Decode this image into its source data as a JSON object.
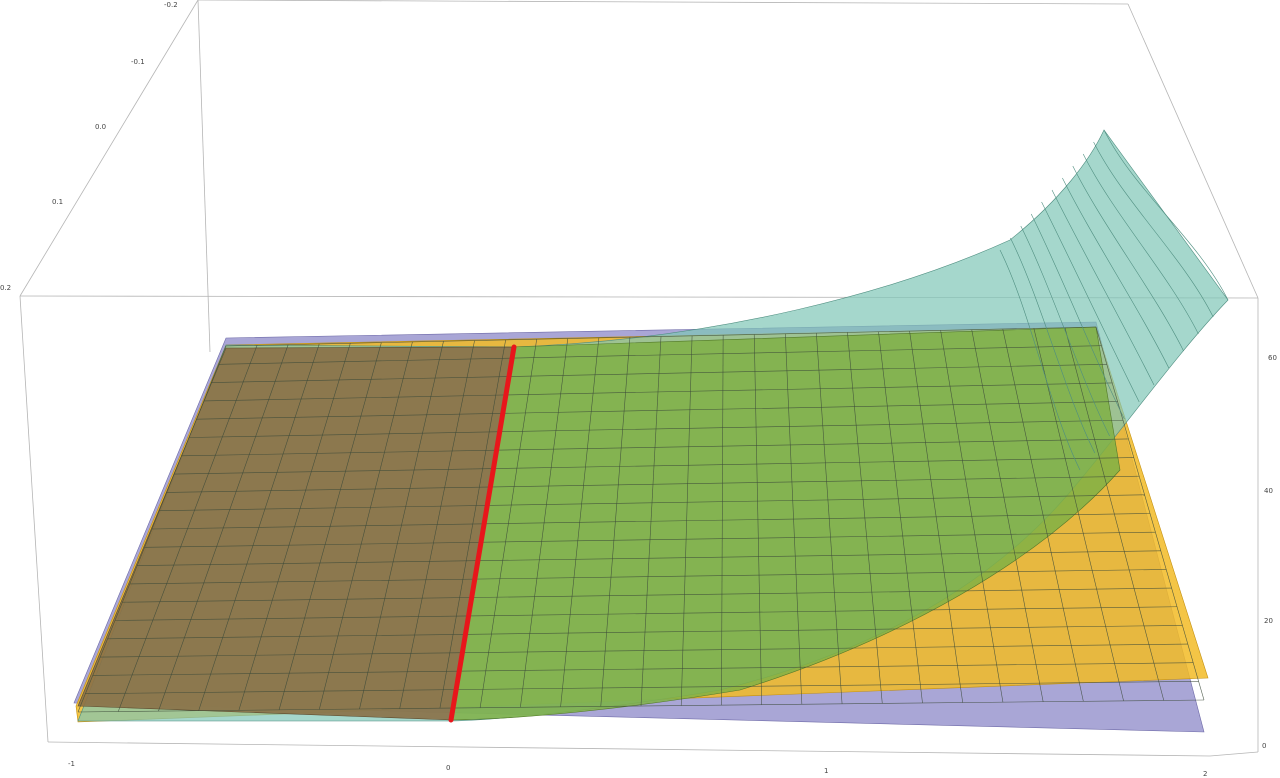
{
  "chart_data": {
    "type": "surface3d",
    "axes": {
      "x": {
        "ticks": [
          "-1",
          "0",
          "1",
          "2"
        ],
        "range": [
          -1,
          2
        ]
      },
      "y": {
        "ticks": [
          "-0.2",
          "-0.1",
          "0.0",
          "0.1",
          "0.2"
        ],
        "range": [
          -0.2,
          0.2
        ]
      },
      "z": {
        "ticks": [
          "0",
          "20",
          "40",
          "60"
        ],
        "range": [
          0,
          60
        ]
      }
    },
    "grid": false,
    "surfaces": [
      {
        "id": "teal",
        "color": "#7fc6b6",
        "description_of_values": "z rises steeply as x approaches 2, about 60 at x=2",
        "values": {
          "x": [
            -1,
            0,
            0.5,
            1,
            1.5,
            2
          ],
          "z": [
            0,
            0.3,
            3,
            8,
            20,
            60
          ]
        }
      },
      {
        "id": "yellow",
        "color": "#f2bb26",
        "values": {
          "x": [
            -1,
            0,
            1,
            2
          ],
          "z": [
            2,
            4,
            10,
            22
          ]
        }
      },
      {
        "id": "blue",
        "color": "#9a96cf",
        "values": {
          "x": [
            -1,
            0,
            1,
            2
          ],
          "z": [
            1,
            1,
            1,
            1
          ]
        }
      }
    ],
    "curve": {
      "color": "#e8161b",
      "x": 0
    }
  }
}
